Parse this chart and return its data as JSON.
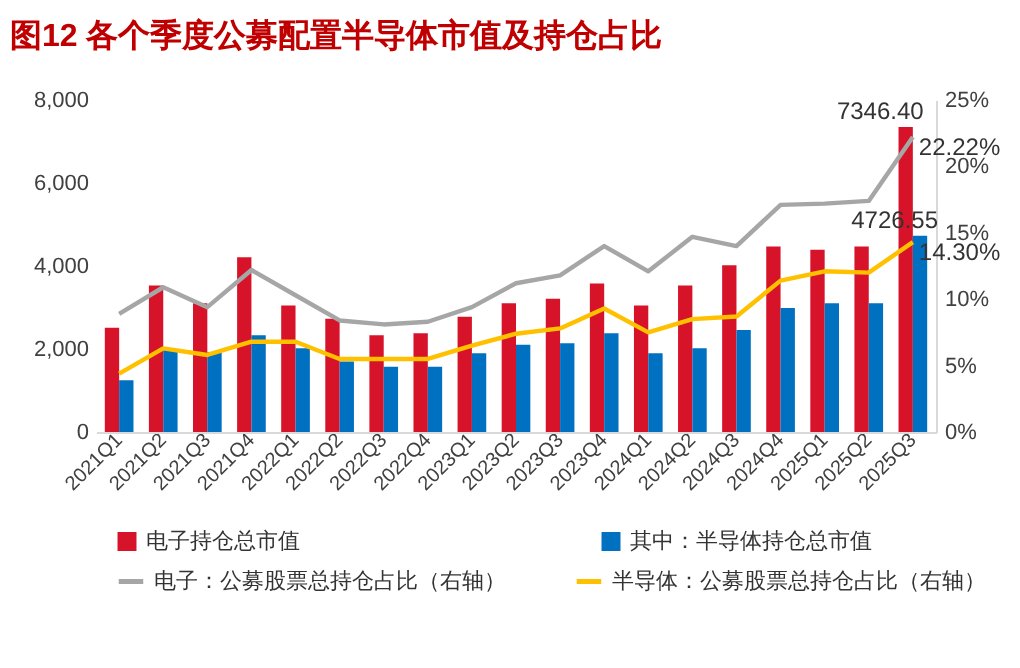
{
  "chart_data": {
    "type": "bar",
    "title": "图12  各个季度公募配置半导体市值及持仓占比",
    "categories": [
      "2021Q1",
      "2021Q2",
      "2021Q3",
      "2021Q4",
      "2022Q1",
      "2022Q2",
      "2022Q3",
      "2022Q4",
      "2023Q1",
      "2023Q2",
      "2023Q3",
      "2023Q4",
      "2024Q1",
      "2024Q2",
      "2024Q3",
      "2024Q4",
      "2025Q1",
      "2025Q2",
      "2025Q3"
    ],
    "series": [
      {
        "name": "电子持仓总市值",
        "color": "#d7132a",
        "values": [
          2510,
          3530,
          3100,
          4210,
          3050,
          2730,
          2330,
          2380,
          2780,
          3100,
          3210,
          3580,
          3050,
          3530,
          4020,
          4470,
          4390,
          4470,
          7346.4
        ],
        "value_labels": [
          null,
          null,
          null,
          null,
          null,
          null,
          null,
          null,
          null,
          null,
          null,
          null,
          null,
          null,
          null,
          null,
          null,
          null,
          "7346.40"
        ]
      },
      {
        "name": "其中：半导体持仓总市值",
        "color": "#0070c0",
        "values": [
          1250,
          1980,
          1930,
          2330,
          2020,
          1700,
          1570,
          1570,
          1900,
          2100,
          2140,
          2380,
          1900,
          2020,
          2460,
          2990,
          3100,
          3100,
          4726.55
        ],
        "value_labels": [
          null,
          null,
          null,
          null,
          null,
          null,
          null,
          null,
          null,
          null,
          null,
          null,
          null,
          null,
          null,
          null,
          null,
          null,
          "4726.55"
        ]
      },
      {
        "name": "电子：公募股票总持仓占比（右轴）",
        "type": "line",
        "axis": "y2",
        "color": "#a6a6a6",
        "values": [
          8.9,
          10.9,
          9.4,
          12.2,
          10.3,
          8.4,
          8.1,
          8.3,
          9.4,
          11.2,
          11.8,
          14.0,
          12.1,
          14.7,
          14.0,
          17.1,
          17.2,
          17.4,
          22.22
        ],
        "value_labels": [
          null,
          null,
          null,
          null,
          null,
          null,
          null,
          null,
          null,
          null,
          null,
          null,
          null,
          null,
          null,
          null,
          null,
          null,
          "22.22%"
        ]
      },
      {
        "name": "半导体：公募股票总持仓占比（右轴）",
        "type": "line",
        "axis": "y2",
        "color": "#ffc000",
        "values": [
          4.4,
          6.3,
          5.8,
          6.8,
          6.8,
          5.5,
          5.5,
          5.5,
          6.5,
          7.4,
          7.8,
          9.3,
          7.5,
          8.5,
          8.7,
          11.4,
          12.1,
          12.0,
          14.3
        ],
        "value_labels": [
          null,
          null,
          null,
          null,
          null,
          null,
          null,
          null,
          null,
          null,
          null,
          null,
          null,
          null,
          null,
          null,
          null,
          null,
          "14.30%"
        ]
      }
    ],
    "ylim": [
      0,
      8000
    ],
    "yticks": [
      0,
      {
        "value": 2000,
        "label": "2,000"
      },
      {
        "value": 4000,
        "label": "4,000"
      },
      {
        "value": 6000,
        "label": "6,000"
      },
      {
        "value": 8000,
        "label": "8,000"
      }
    ],
    "y2lim": [
      0,
      25
    ],
    "y2ticks": [
      {
        "value": 0,
        "label": "0%"
      },
      {
        "value": 5,
        "label": "5%"
      },
      {
        "value": 10,
        "label": "10%"
      },
      {
        "value": 15,
        "label": "15%"
      },
      {
        "value": 20,
        "label": "20%"
      },
      {
        "value": 25,
        "label": "25%"
      }
    ],
    "grid": false,
    "legend": "bottom"
  }
}
